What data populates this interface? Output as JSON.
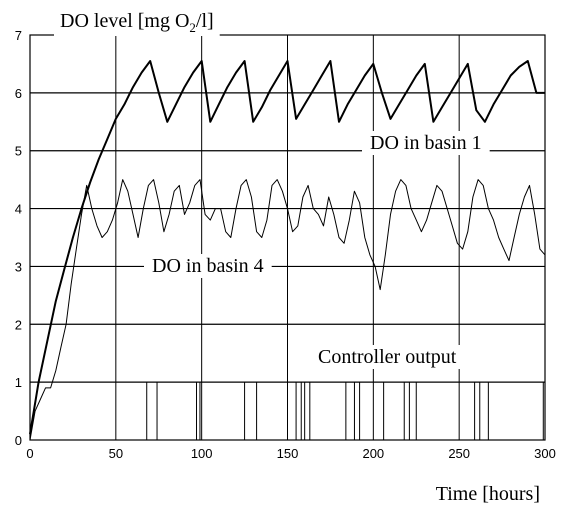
{
  "chart_data": {
    "type": "line",
    "title": "DO level [mg O2/l]",
    "title_parts": {
      "main": "DO level [mg O",
      "sub": "2",
      "tail": "/l]"
    },
    "xlabel": "Time [hours]",
    "ylabel": "",
    "xlim": [
      0,
      300
    ],
    "ylim": [
      0,
      7
    ],
    "x_ticks": [
      "0",
      "50",
      "100",
      "150",
      "200",
      "250",
      "300"
    ],
    "y_ticks": [
      "0",
      "1",
      "2",
      "3",
      "4",
      "5",
      "6",
      "7"
    ],
    "grid": true,
    "annotations": {
      "basin1": "DO in basin 1",
      "basin4": "DO in basin 4",
      "controller": "Controller output"
    },
    "series": [
      {
        "name": "DO in basin 1",
        "x": [
          0,
          5,
          10,
          15,
          20,
          25,
          30,
          35,
          40,
          45,
          50,
          55,
          60,
          65,
          70,
          75,
          80,
          85,
          90,
          95,
          100,
          105,
          110,
          115,
          120,
          125,
          130,
          135,
          140,
          145,
          150,
          155,
          160,
          165,
          170,
          175,
          180,
          185,
          190,
          195,
          200,
          205,
          210,
          215,
          220,
          225,
          230,
          235,
          240,
          245,
          250,
          255,
          260,
          265,
          270,
          275,
          280,
          285,
          290,
          295,
          300
        ],
        "values": [
          0.1,
          1.0,
          1.7,
          2.4,
          2.95,
          3.5,
          4.0,
          4.45,
          4.85,
          5.2,
          5.55,
          5.8,
          6.1,
          6.35,
          6.55,
          6.0,
          5.5,
          5.8,
          6.1,
          6.35,
          6.55,
          5.5,
          5.8,
          6.1,
          6.35,
          6.55,
          5.5,
          5.75,
          6.05,
          6.3,
          6.55,
          5.55,
          5.8,
          6.05,
          6.3,
          6.55,
          5.5,
          5.8,
          6.05,
          6.3,
          6.5,
          6.0,
          5.55,
          5.8,
          6.05,
          6.3,
          6.5,
          5.5,
          5.75,
          6.0,
          6.25,
          6.5,
          5.7,
          5.5,
          5.8,
          6.05,
          6.3,
          6.45,
          6.55,
          6.0,
          6.0
        ]
      },
      {
        "name": "DO in basin 4",
        "x": [
          0,
          3,
          6,
          9,
          12,
          15,
          18,
          21,
          24,
          27,
          30,
          33,
          36,
          39,
          42,
          45,
          48,
          51,
          54,
          57,
          60,
          63,
          66,
          69,
          72,
          75,
          78,
          81,
          84,
          87,
          90,
          93,
          96,
          99,
          102,
          105,
          108,
          111,
          114,
          117,
          120,
          123,
          126,
          129,
          132,
          135,
          138,
          141,
          144,
          147,
          150,
          153,
          156,
          159,
          162,
          165,
          168,
          171,
          174,
          177,
          180,
          183,
          186,
          189,
          192,
          195,
          198,
          201,
          204,
          207,
          210,
          213,
          216,
          219,
          222,
          225,
          228,
          231,
          234,
          237,
          240,
          243,
          246,
          249,
          252,
          255,
          258,
          261,
          264,
          267,
          270,
          273,
          276,
          279,
          282,
          285,
          288,
          291,
          294,
          297,
          300
        ],
        "values": [
          0.0,
          0.5,
          0.7,
          0.9,
          0.9,
          1.2,
          1.6,
          2.0,
          2.7,
          3.3,
          3.9,
          4.4,
          4.0,
          3.7,
          3.5,
          3.6,
          3.8,
          4.1,
          4.5,
          4.3,
          3.9,
          3.5,
          4.0,
          4.4,
          4.5,
          4.1,
          3.6,
          3.9,
          4.3,
          4.4,
          3.9,
          4.1,
          4.4,
          4.5,
          3.9,
          3.8,
          4.0,
          4.0,
          3.6,
          3.5,
          4.0,
          4.4,
          4.5,
          4.2,
          3.6,
          3.5,
          3.8,
          4.4,
          4.5,
          4.3,
          4.0,
          3.6,
          3.7,
          4.2,
          4.4,
          4.0,
          3.9,
          3.7,
          4.2,
          3.9,
          3.5,
          3.4,
          3.8,
          4.3,
          4.1,
          3.5,
          3.2,
          3.0,
          2.6,
          3.2,
          3.9,
          4.3,
          4.5,
          4.4,
          4.0,
          3.8,
          3.6,
          3.8,
          4.1,
          4.4,
          4.3,
          4.0,
          3.7,
          3.4,
          3.3,
          3.6,
          4.2,
          4.5,
          4.4,
          4.0,
          3.8,
          3.5,
          3.3,
          3.1,
          3.5,
          3.9,
          4.2,
          4.4,
          3.9,
          3.3,
          3.2
        ],
        "values_note": ""
      },
      {
        "name": "Controller output",
        "type": "impulses",
        "x": [
          68,
          74,
          97,
          99,
          125,
          132,
          155,
          158,
          160,
          163,
          184,
          189,
          192,
          206,
          218,
          221,
          225,
          259,
          262,
          267,
          299
        ],
        "values": [
          1,
          1,
          1,
          1,
          1,
          1,
          1,
          1,
          1,
          1,
          1,
          1,
          1,
          1,
          1,
          1,
          1,
          1,
          1,
          1,
          1
        ]
      }
    ]
  }
}
